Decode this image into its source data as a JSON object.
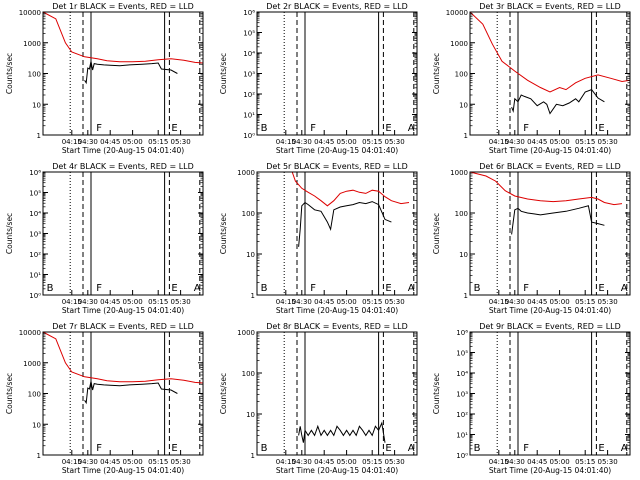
{
  "page": {
    "background": "#ffffff",
    "event_color": "#000000",
    "lld_color": "#dd0000"
  },
  "chart_data": [
    {
      "type": "line",
      "title": "Det 1r BLACK = Events, RED = LLD",
      "xlabel": "Start Time (20-Aug-15 04:01:40)",
      "ylabel": "Counts/sec",
      "yscale": "log",
      "ylim": [
        1,
        10000
      ],
      "xlim": [
        0,
        100
      ],
      "yticks": [
        "1",
        "10",
        "100",
        "1000",
        "10000"
      ],
      "xticks": [
        "04:15",
        "04:30",
        "04:45",
        "05:00",
        "05:15",
        "05:30"
      ],
      "markers": [
        "F",
        "E"
      ],
      "series": [
        {
          "name": "LLD",
          "color": "#dd0000",
          "x": [
            0,
            8,
            14,
            18,
            26,
            34,
            40,
            48,
            56,
            64,
            72,
            80,
            88,
            95,
            100
          ],
          "y": [
            10000,
            6000,
            1000,
            500,
            350,
            300,
            260,
            240,
            240,
            250,
            280,
            300,
            270,
            230,
            220
          ]
        },
        {
          "name": "Events",
          "color": "#000000",
          "x": [
            26,
            27,
            28,
            29,
            30,
            31,
            32,
            34,
            38,
            42,
            48,
            54,
            62,
            68,
            72,
            74,
            80,
            84
          ],
          "y": [
            60,
            50,
            150,
            140,
            250,
            130,
            210,
            200,
            190,
            185,
            180,
            190,
            200,
            210,
            220,
            140,
            130,
            100
          ]
        }
      ]
    },
    {
      "type": "line",
      "title": "Det 2r BLACK = Events, RED = LLD",
      "xlabel": "Start Time (20-Aug-15 04:01:40)",
      "ylabel": "Counts/sec",
      "yscale": "log",
      "ylim": [
        1,
        1000000
      ],
      "xlim": [
        0,
        100
      ],
      "yticks": [
        "10⁰",
        "10¹",
        "10²",
        "10³",
        "10⁴",
        "10⁵",
        "10⁶"
      ],
      "xticks": [
        "04:15",
        "04:30",
        "04:45",
        "05:00",
        "05:15",
        "05:30"
      ],
      "markers": [
        "B",
        "F",
        "E",
        "A"
      ],
      "series": []
    },
    {
      "type": "line",
      "title": "Det 3r BLACK = Events, RED = LLD",
      "xlabel": "Start Time (20-Aug-15 04:01:40)",
      "ylabel": "Counts/sec",
      "yscale": "log",
      "ylim": [
        1,
        10000
      ],
      "xlim": [
        0,
        100
      ],
      "yticks": [
        "1",
        "10",
        "100",
        "1000",
        "10000"
      ],
      "xticks": [
        "04:15",
        "04:30",
        "04:45",
        "05:00",
        "05:15",
        "05:30"
      ],
      "markers": [
        "F",
        "E"
      ],
      "series": [
        {
          "name": "LLD",
          "color": "#dd0000",
          "x": [
            0,
            8,
            14,
            20,
            28,
            36,
            44,
            50,
            56,
            60,
            66,
            72,
            80,
            88,
            95,
            100
          ],
          "y": [
            10000,
            4000,
            900,
            250,
            120,
            60,
            35,
            25,
            35,
            30,
            50,
            70,
            90,
            70,
            55,
            60
          ]
        },
        {
          "name": "Events",
          "color": "#000000",
          "x": [
            26,
            27,
            28,
            30,
            32,
            34,
            38,
            42,
            46,
            48,
            50,
            54,
            58,
            62,
            66,
            68,
            72,
            76,
            80,
            84
          ],
          "y": [
            8,
            6,
            15,
            12,
            20,
            18,
            15,
            9,
            12,
            10,
            5,
            10,
            9,
            11,
            15,
            12,
            25,
            30,
            16,
            12
          ]
        }
      ]
    },
    {
      "type": "line",
      "title": "Det 4r BLACK = Events, RED = LLD",
      "xlabel": "Start Time (20-Aug-15 04:01:40)",
      "ylabel": "Counts/sec",
      "yscale": "log",
      "ylim": [
        1,
        1000000
      ],
      "xlim": [
        0,
        100
      ],
      "yticks": [
        "10⁰",
        "10¹",
        "10²",
        "10³",
        "10⁴",
        "10⁵",
        "10⁶"
      ],
      "xticks": [
        "04:15",
        "04:30",
        "04:45",
        "05:00",
        "05:15",
        "05:30"
      ],
      "markers": [
        "B",
        "F",
        "E",
        "A"
      ],
      "series": []
    },
    {
      "type": "line",
      "title": "Det 5r BLACK = Events, RED = LLD",
      "xlabel": "Start Time (20-Aug-15 04:01:40)",
      "ylabel": "Counts/sec",
      "yscale": "log",
      "ylim": [
        1,
        1000
      ],
      "xlim": [
        0,
        100
      ],
      "yticks": [
        "1",
        "10",
        "100",
        "1000"
      ],
      "xticks": [
        "04:15",
        "04:30",
        "04:45",
        "05:00",
        "05:15",
        "05:30"
      ],
      "markers": [
        "B",
        "F",
        "E",
        "A"
      ],
      "series": [
        {
          "name": "LLD",
          "color": "#dd0000",
          "x": [
            22,
            24,
            28,
            32,
            36,
            40,
            44,
            48,
            52,
            56,
            60,
            64,
            68,
            72,
            76,
            80,
            84,
            90,
            95
          ],
          "y": [
            1000,
            600,
            400,
            320,
            260,
            200,
            150,
            200,
            300,
            340,
            360,
            320,
            300,
            360,
            340,
            250,
            200,
            170,
            180
          ]
        },
        {
          "name": "Events",
          "color": "#000000",
          "x": [
            26,
            27,
            28,
            30,
            32,
            36,
            40,
            44,
            46,
            48,
            52,
            56,
            60,
            64,
            68,
            72,
            76,
            80,
            84
          ],
          "y": [
            15,
            40,
            150,
            180,
            160,
            120,
            110,
            60,
            40,
            120,
            140,
            150,
            160,
            180,
            170,
            190,
            160,
            70,
            60
          ]
        }
      ]
    },
    {
      "type": "line",
      "title": "Det 6r BLACK = Events, RED = LLD",
      "xlabel": "Start Time (20-Aug-15 04:01:40)",
      "ylabel": "Counts/sec",
      "yscale": "log",
      "ylim": [
        1,
        1000
      ],
      "xlim": [
        0,
        100
      ],
      "yticks": [
        "1",
        "10",
        "100",
        "1000"
      ],
      "xticks": [
        "04:15",
        "04:30",
        "04:45",
        "05:00",
        "05:15",
        "05:30"
      ],
      "markers": [
        "B",
        "F",
        "E",
        "A"
      ],
      "series": [
        {
          "name": "LLD",
          "color": "#dd0000",
          "x": [
            0,
            10,
            16,
            22,
            28,
            36,
            44,
            52,
            60,
            68,
            76,
            80,
            84,
            90,
            95
          ],
          "y": [
            1000,
            800,
            600,
            350,
            260,
            220,
            200,
            190,
            200,
            220,
            240,
            220,
            180,
            160,
            170
          ]
        },
        {
          "name": "Events",
          "color": "#000000",
          "x": [
            26,
            27,
            28,
            30,
            32,
            36,
            40,
            44,
            52,
            60,
            68,
            74,
            76,
            80,
            84
          ],
          "y": [
            30,
            60,
            120,
            130,
            110,
            100,
            95,
            90,
            100,
            110,
            130,
            150,
            60,
            55,
            50
          ]
        }
      ]
    },
    {
      "type": "line",
      "title": "Det 7r BLACK = Events, RED = LLD",
      "xlabel": "Start Time (20-Aug-15 04:01:40)",
      "ylabel": "Counts/sec",
      "yscale": "log",
      "ylim": [
        1,
        10000
      ],
      "xlim": [
        0,
        100
      ],
      "yticks": [
        "1",
        "10",
        "100",
        "1000",
        "10000"
      ],
      "xticks": [
        "04:15",
        "04:30",
        "04:45",
        "05:00",
        "05:15",
        "05:30"
      ],
      "markers": [
        "F",
        "E"
      ],
      "series": [
        {
          "name": "LLD",
          "color": "#dd0000",
          "x": [
            0,
            8,
            14,
            18,
            26,
            34,
            40,
            48,
            56,
            64,
            72,
            80,
            88,
            95,
            100
          ],
          "y": [
            10000,
            6000,
            1000,
            500,
            350,
            300,
            260,
            240,
            240,
            250,
            280,
            300,
            270,
            230,
            220
          ]
        },
        {
          "name": "Events",
          "color": "#000000",
          "x": [
            26,
            27,
            28,
            29,
            30,
            31,
            32,
            34,
            38,
            42,
            48,
            54,
            62,
            68,
            72,
            74,
            80,
            84
          ],
          "y": [
            60,
            50,
            150,
            140,
            250,
            130,
            210,
            200,
            190,
            185,
            180,
            190,
            200,
            210,
            220,
            140,
            130,
            100
          ]
        }
      ]
    },
    {
      "type": "line",
      "title": "Det 8r BLACK = Events, RED = LLD",
      "xlabel": "Start Time (20-Aug-15 04:01:40)",
      "ylabel": "Counts/sec",
      "yscale": "log",
      "ylim": [
        1,
        1000
      ],
      "xlim": [
        0,
        100
      ],
      "yticks": [
        "1",
        "10",
        "100",
        "1000"
      ],
      "xticks": [
        "04:15",
        "04:30",
        "04:45",
        "05:00",
        "05:15",
        "05:30"
      ],
      "markers": [
        "B",
        "E",
        "A"
      ],
      "series": [
        {
          "name": "Events",
          "color": "#000000",
          "x": [
            26,
            27,
            28,
            29,
            30,
            32,
            34,
            36,
            38,
            40,
            42,
            44,
            46,
            48,
            50,
            52,
            54,
            56,
            58,
            60,
            62,
            64,
            66,
            68,
            70,
            72,
            74,
            76,
            78,
            80
          ],
          "y": [
            3,
            5,
            3,
            2,
            4,
            3,
            4,
            3,
            5,
            3,
            4,
            3,
            4,
            3,
            5,
            4,
            3,
            4,
            3,
            4,
            3,
            5,
            4,
            3,
            4,
            3,
            5,
            4,
            6,
            2
          ]
        }
      ]
    },
    {
      "type": "line",
      "title": "Det 9r BLACK = Events, RED = LLD",
      "xlabel": "Start Time (20-Aug-15 04:01:40)",
      "ylabel": "Counts/sec",
      "yscale": "log",
      "ylim": [
        1,
        1000000
      ],
      "xlim": [
        0,
        100
      ],
      "yticks": [
        "10⁰",
        "10¹",
        "10²",
        "10³",
        "10⁴",
        "10⁵",
        "10⁶"
      ],
      "xticks": [
        "04:15",
        "04:30",
        "04:45",
        "05:00",
        "05:15",
        "05:30"
      ],
      "markers": [
        "B",
        "F",
        "E",
        "A"
      ],
      "series": []
    }
  ]
}
